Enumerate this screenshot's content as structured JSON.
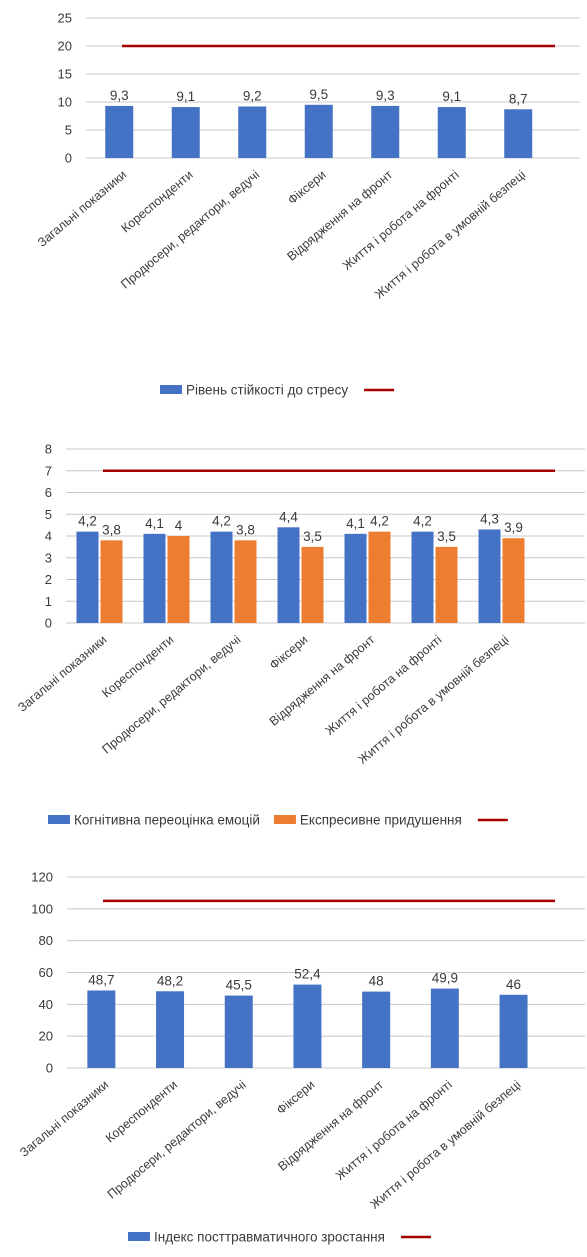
{
  "chart_data": [
    {
      "type": "bar",
      "title": "",
      "categories": [
        "Загальні показники",
        "Кореспонденти",
        "Продюсери, редактори, ведучі",
        "Фіксери",
        "Відрядження на фронт",
        "Життя і робота на фронті",
        "Життя і робота в умовній безпеці"
      ],
      "series": [
        {
          "name": "Рівень стійкості до стресу",
          "values": [
            9.3,
            9.1,
            9.2,
            9.5,
            9.3,
            9.1,
            8.7
          ],
          "labels": [
            "9,3",
            "9,1",
            "9,2",
            "9,5",
            "9,3",
            "9,1",
            "8,7"
          ],
          "color": "#4472c4"
        }
      ],
      "reference_line": {
        "value": 20,
        "color": "#a40000"
      },
      "ylim": [
        0,
        25
      ],
      "yticks": [
        0,
        5,
        10,
        15,
        20,
        25
      ],
      "grid": true,
      "legend": "bottom",
      "xlabel": "",
      "ylabel": ""
    },
    {
      "type": "bar",
      "title": "",
      "categories": [
        "Загальні показники",
        "Кореспонденти",
        "Продюсери, редактори, ведучі",
        "Фіксери",
        "Відрядження на фронт",
        "Життя і робота на фронті",
        "Життя і робота в умовній безпеці"
      ],
      "series": [
        {
          "name": "Когнітивна переоцінка емоцій",
          "values": [
            4.2,
            4.1,
            4.2,
            4.4,
            4.1,
            4.2,
            4.3
          ],
          "labels": [
            "4,2",
            "4,1",
            "4,2",
            "4,4",
            "4,1",
            "4,2",
            "4,3"
          ],
          "color": "#4472c4"
        },
        {
          "name": "Експресивне придушення",
          "values": [
            3.8,
            4.0,
            3.8,
            3.5,
            4.2,
            3.5,
            3.9
          ],
          "labels": [
            "3,8",
            "4",
            "3,8",
            "3,5",
            "4,2",
            "3,5",
            "3,9"
          ],
          "color": "#ed7d31"
        }
      ],
      "reference_line": {
        "value": 7,
        "color": "#a40000"
      },
      "ylim": [
        0,
        8
      ],
      "yticks": [
        0,
        1,
        2,
        3,
        4,
        5,
        6,
        7,
        8
      ],
      "grid": true,
      "legend": "bottom",
      "xlabel": "",
      "ylabel": ""
    },
    {
      "type": "bar",
      "title": "",
      "categories": [
        "Загальні показники",
        "Кореспонденти",
        "Продюсери, редактори, ведучі",
        "Фіксери",
        "Відрядження на фронт",
        "Життя і робота на фронті",
        "Життя і робота в умовній безпеці"
      ],
      "series": [
        {
          "name": "Індекс посттравматичного зростання",
          "values": [
            48.7,
            48.2,
            45.5,
            52.4,
            48,
            49.9,
            46
          ],
          "labels": [
            "48,7",
            "48,2",
            "45,5",
            "52,4",
            "48",
            "49,9",
            "46"
          ],
          "color": "#4472c4"
        }
      ],
      "reference_line": {
        "value": 105,
        "color": "#a40000"
      },
      "ylim": [
        0,
        120
      ],
      "yticks": [
        0,
        20,
        40,
        60,
        80,
        100,
        120
      ],
      "grid": true,
      "legend": "bottom",
      "xlabel": "",
      "ylabel": ""
    }
  ]
}
